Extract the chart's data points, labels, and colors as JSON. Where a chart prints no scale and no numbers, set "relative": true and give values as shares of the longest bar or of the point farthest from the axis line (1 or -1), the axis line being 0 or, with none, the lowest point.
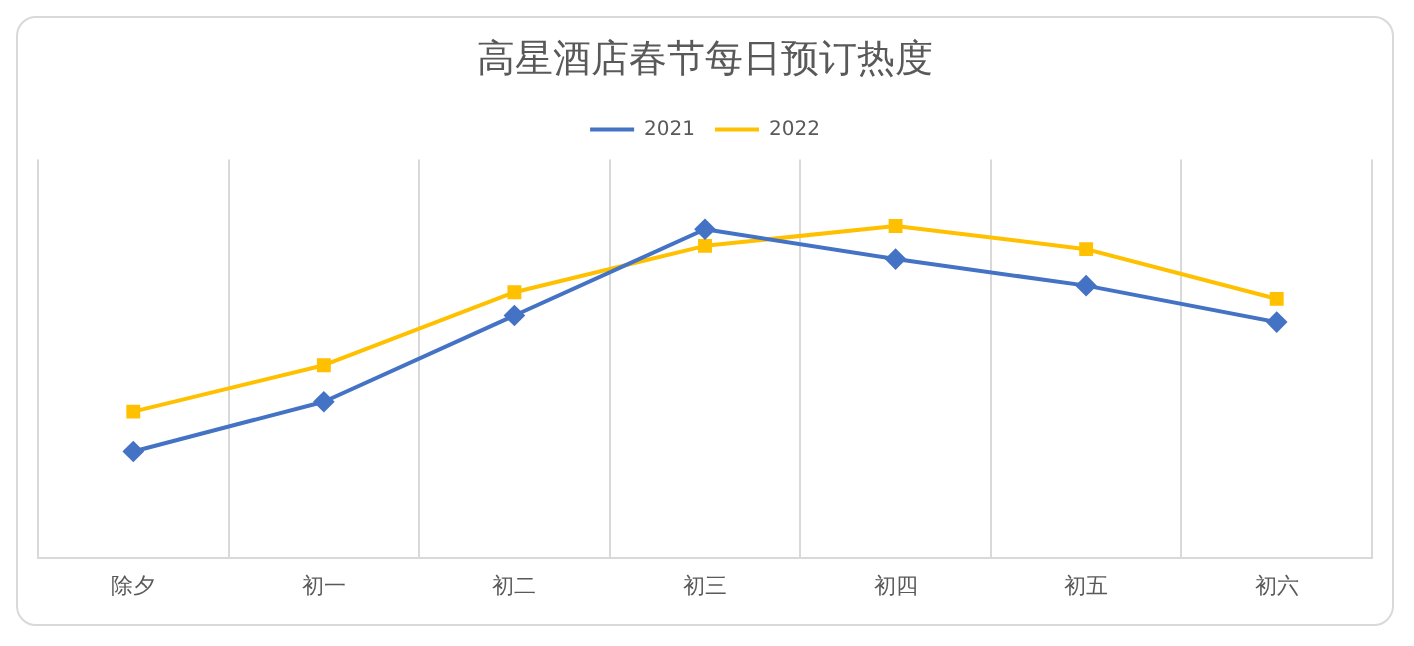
{
  "chart_data": {
    "type": "line",
    "title": "高星酒店春节每日预订热度",
    "categories": [
      "除夕",
      "初一",
      "初二",
      "初三",
      "初四",
      "初五",
      "初六"
    ],
    "relative": true,
    "grid": "x",
    "legend": "top",
    "series": [
      {
        "name": "2021",
        "color": "#4472c4",
        "marker": "diamond",
        "values": [
          0.32,
          0.47,
          0.73,
          0.99,
          0.9,
          0.82,
          0.71
        ]
      },
      {
        "name": "2022",
        "color": "#ffc000",
        "marker": "square",
        "values": [
          0.44,
          0.58,
          0.8,
          0.94,
          1,
          0.93,
          0.78
        ]
      }
    ]
  }
}
